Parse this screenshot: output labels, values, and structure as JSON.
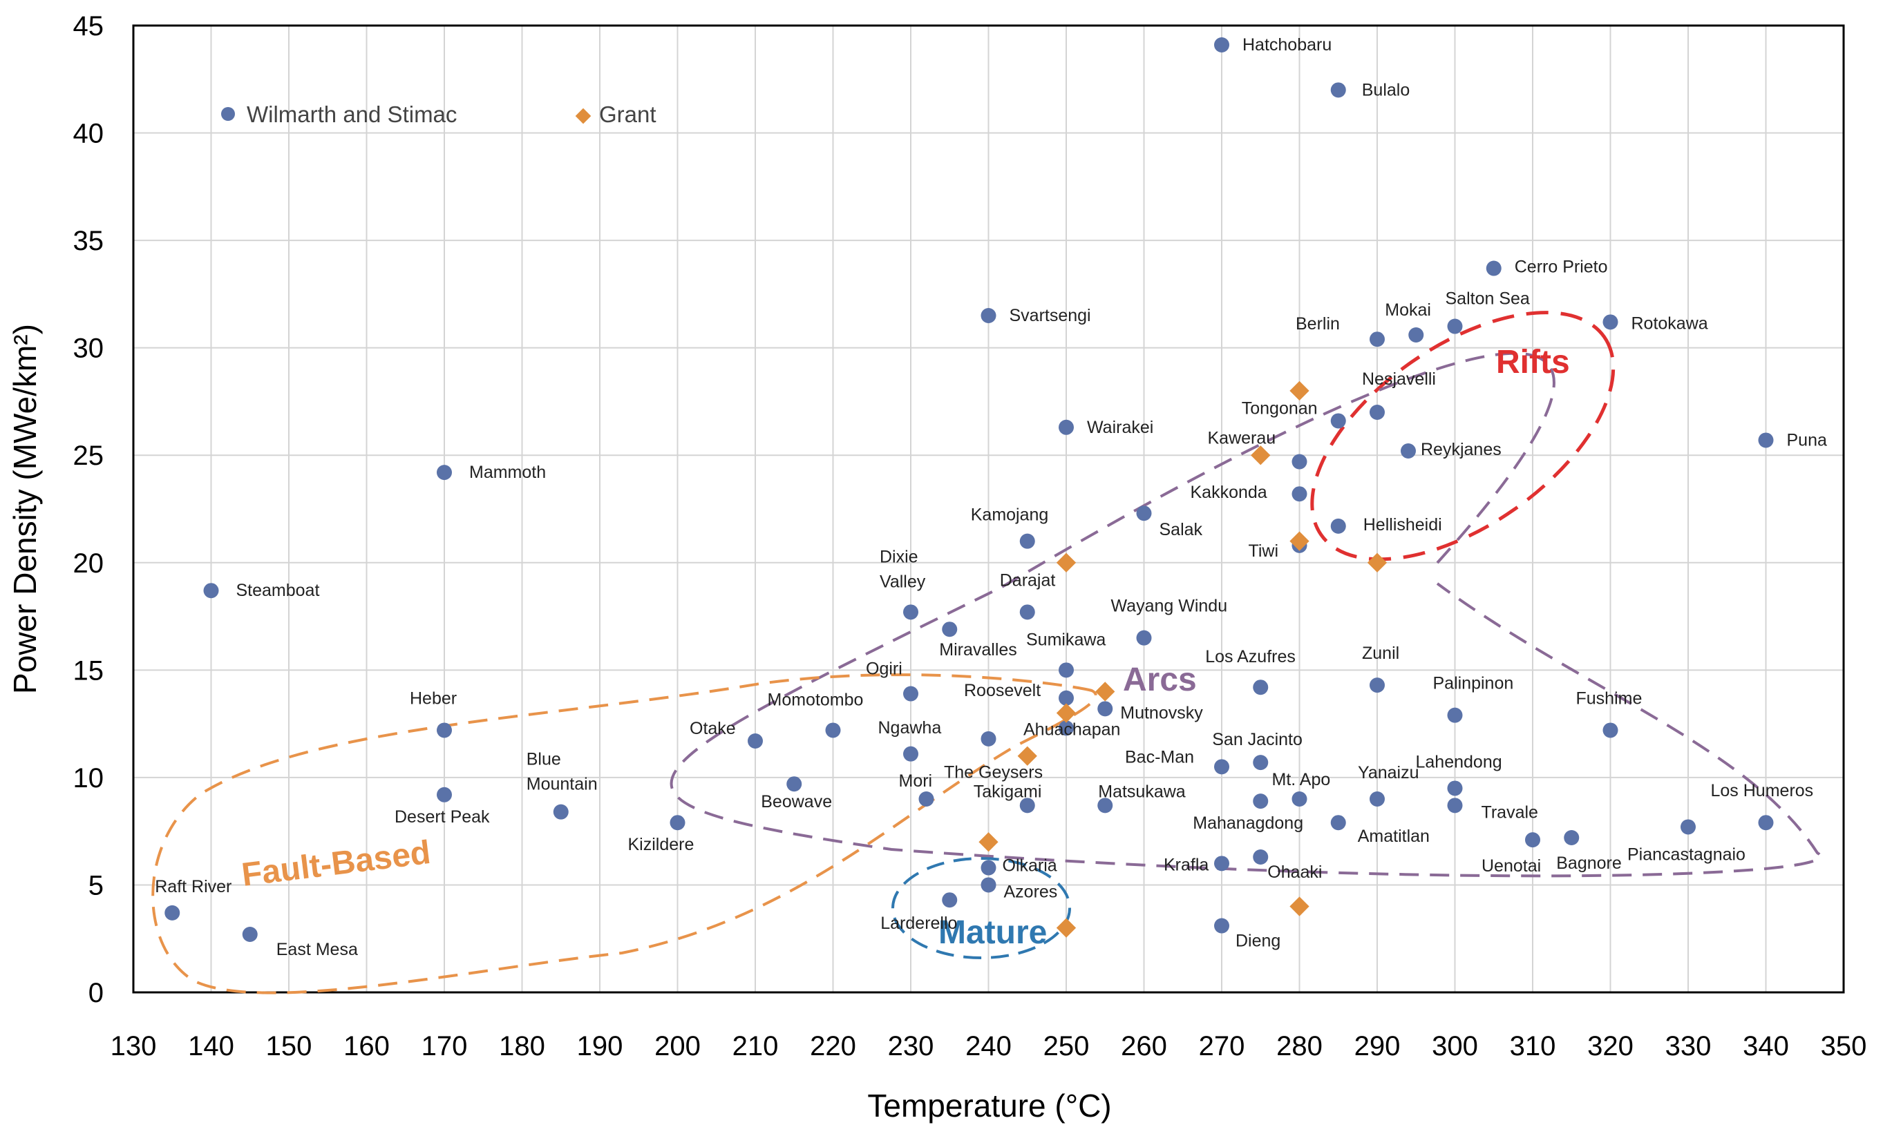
{
  "chart_data": {
    "type": "scatter",
    "title": "",
    "xlabel": "Temperature (°C)",
    "ylabel": "Power Density (MWe/km²)",
    "xlim": [
      130,
      350
    ],
    "ylim": [
      0,
      45
    ],
    "xticks": [
      "130",
      "140",
      "150",
      "160",
      "170",
      "180",
      "190",
      "200",
      "210",
      "220",
      "230",
      "240",
      "250",
      "260",
      "270",
      "280",
      "290",
      "300",
      "310",
      "320",
      "330",
      "340",
      "350"
    ],
    "yticks": [
      "0",
      "5",
      "10",
      "15",
      "20",
      "25",
      "30",
      "35",
      "40",
      "45"
    ],
    "grid": true,
    "legend": {
      "placement": "top-left",
      "entries": [
        "Wilmarth and Stimac",
        "Grant"
      ]
    },
    "colors": {
      "wilmarth": "#5a72a8",
      "grant": "#e08e3c",
      "rifts": "#e03030",
      "arcs": "#8a6a96",
      "fault": "#e8934a",
      "mature": "#2f78b0",
      "plot_border": "#000000"
    },
    "series": [
      {
        "name": "Wilmarth and Stimac",
        "marker": "circle",
        "points": [
          {
            "x": 270,
            "y": 44.1,
            "label": "Hatchobaru"
          },
          {
            "x": 285,
            "y": 42,
            "label": "Bulalo"
          },
          {
            "x": 305,
            "y": 33.7,
            "label": "Cerro Prieto"
          },
          {
            "x": 240,
            "y": 31.5,
            "label": "Svartsengi"
          },
          {
            "x": 300,
            "y": 31,
            "label": "Salton Sea"
          },
          {
            "x": 295,
            "y": 30.6,
            "label": "Mokai"
          },
          {
            "x": 290,
            "y": 30.4,
            "label": "Berlin"
          },
          {
            "x": 320,
            "y": 31.2,
            "label": "Rotokawa"
          },
          {
            "x": 290,
            "y": 27,
            "label": "Nesjavelli"
          },
          {
            "x": 285,
            "y": 26.6,
            "label": "Tongonan"
          },
          {
            "x": 250,
            "y": 26.3,
            "label": "Wairakei"
          },
          {
            "x": 294,
            "y": 25.2,
            "label": "Reykjanes"
          },
          {
            "x": 340,
            "y": 25.7,
            "label": "Puna"
          },
          {
            "x": 280,
            "y": 24.7,
            "label": "Kawerau"
          },
          {
            "x": 170,
            "y": 24.2,
            "label": "Mammoth"
          },
          {
            "x": 280,
            "y": 23.2,
            "label": "Kakkonda"
          },
          {
            "x": 260,
            "y": 22.3,
            "label": "Salak"
          },
          {
            "x": 285,
            "y": 21.7,
            "label": "Hellisheidi"
          },
          {
            "x": 245,
            "y": 21,
            "label": "Kamojang"
          },
          {
            "x": 280,
            "y": 20.8,
            "label": "Tiwi"
          },
          {
            "x": 140,
            "y": 18.7,
            "label": "Steamboat"
          },
          {
            "x": 230,
            "y": 17.7,
            "label": "Dixie Valley"
          },
          {
            "x": 245,
            "y": 17.7,
            "label": "Darajat"
          },
          {
            "x": 235,
            "y": 16.9,
            "label": "Miravalles"
          },
          {
            "x": 260,
            "y": 16.5,
            "label": "Wayang Windu"
          },
          {
            "x": 250,
            "y": 15,
            "label": "Sumikawa"
          },
          {
            "x": 290,
            "y": 14.3,
            "label": "Zunil"
          },
          {
            "x": 275,
            "y": 14.2,
            "label": "Los Azufres"
          },
          {
            "x": 230,
            "y": 13.9,
            "label": "Ogiri"
          },
          {
            "x": 250,
            "y": 13.7,
            "label": "Roosevelt"
          },
          {
            "x": 255,
            "y": 13.2,
            "label": "Mutnovsky"
          },
          {
            "x": 300,
            "y": 12.9,
            "label": "Palinpinon"
          },
          {
            "x": 170,
            "y": 12.2,
            "label": "Heber"
          },
          {
            "x": 220,
            "y": 12.2,
            "label": "Momotombo"
          },
          {
            "x": 250,
            "y": 12.3,
            "label": "Ahuachapan"
          },
          {
            "x": 320,
            "y": 12.2,
            "label": "Fushime"
          },
          {
            "x": 210,
            "y": 11.7,
            "label": "Otake"
          },
          {
            "x": 240,
            "y": 11.8,
            "label": "Ngawha"
          },
          {
            "x": 230,
            "y": 11.1,
            "label": "The Geysers"
          },
          {
            "x": 275,
            "y": 10.7,
            "label": "San Jacinto"
          },
          {
            "x": 270,
            "y": 10.5,
            "label": "Bac-Man"
          },
          {
            "x": 215,
            "y": 9.7,
            "label": "Beowave"
          },
          {
            "x": 300,
            "y": 9.5,
            "label": "Lahendong"
          },
          {
            "x": 170,
            "y": 9.2,
            "label": "Desert Peak"
          },
          {
            "x": 280,
            "y": 9,
            "label": "Mt. Apo"
          },
          {
            "x": 275,
            "y": 8.9,
            "label": "Mahanagdong"
          },
          {
            "x": 290,
            "y": 9,
            "label": "Yanaizu"
          },
          {
            "x": 232,
            "y": 9,
            "label": "Mori"
          },
          {
            "x": 245,
            "y": 8.7,
            "label": "Takigami"
          },
          {
            "x": 255,
            "y": 8.7,
            "label": "Matsukawa"
          },
          {
            "x": 300,
            "y": 8.7,
            "label": "Travale"
          },
          {
            "x": 185,
            "y": 8.4,
            "label": "Blue Mountain"
          },
          {
            "x": 200,
            "y": 7.9,
            "label": "Kizildere"
          },
          {
            "x": 285,
            "y": 7.9,
            "label": "Amatitlan"
          },
          {
            "x": 340,
            "y": 7.9,
            "label": "Los Humeros"
          },
          {
            "x": 330,
            "y": 7.7,
            "label": "Piancastagnaio"
          },
          {
            "x": 310,
            "y": 7.1,
            "label": "Uenotai"
          },
          {
            "x": 315,
            "y": 7.2,
            "label": "Bagnore"
          },
          {
            "x": 275,
            "y": 6.3,
            "label": "Ohaaki"
          },
          {
            "x": 270,
            "y": 6,
            "label": "Krafla"
          },
          {
            "x": 240,
            "y": 5.8,
            "label": "Olkaria"
          },
          {
            "x": 240,
            "y": 5,
            "label": "Azores"
          },
          {
            "x": 235,
            "y": 4.3,
            "label": "Larderello"
          },
          {
            "x": 135,
            "y": 3.7,
            "label": "Raft River"
          },
          {
            "x": 270,
            "y": 3.1,
            "label": "Dieng"
          },
          {
            "x": 145,
            "y": 2.7,
            "label": "East Mesa"
          }
        ]
      },
      {
        "name": "Grant",
        "marker": "diamond",
        "points": [
          {
            "x": 280,
            "y": 28
          },
          {
            "x": 275,
            "y": 25
          },
          {
            "x": 280,
            "y": 21
          },
          {
            "x": 290,
            "y": 20
          },
          {
            "x": 250,
            "y": 20
          },
          {
            "x": 255,
            "y": 14
          },
          {
            "x": 250,
            "y": 13
          },
          {
            "x": 245,
            "y": 11
          },
          {
            "x": 240,
            "y": 7
          },
          {
            "x": 250,
            "y": 3
          },
          {
            "x": 280,
            "y": 4
          }
        ]
      }
    ],
    "regions": [
      {
        "name": "rifts",
        "label": "Rifts",
        "cx": 301,
        "cy": 25.9,
        "rx": 48.5,
        "ry": 10.8,
        "rot": -35
      },
      {
        "name": "arcs",
        "label": "Arcs",
        "cx": 0,
        "cy": 0,
        "rx": 0,
        "ry": 0,
        "rot": 0
      },
      {
        "name": "fault",
        "label": "Fault-Based",
        "cx": 0,
        "cy": 0,
        "rx": 0,
        "ry": 0,
        "rot": 0
      },
      {
        "name": "mature",
        "label": "Mature",
        "cx": 0,
        "cy": 0,
        "rx": 0,
        "ry": 0,
        "rot": 0
      }
    ]
  }
}
